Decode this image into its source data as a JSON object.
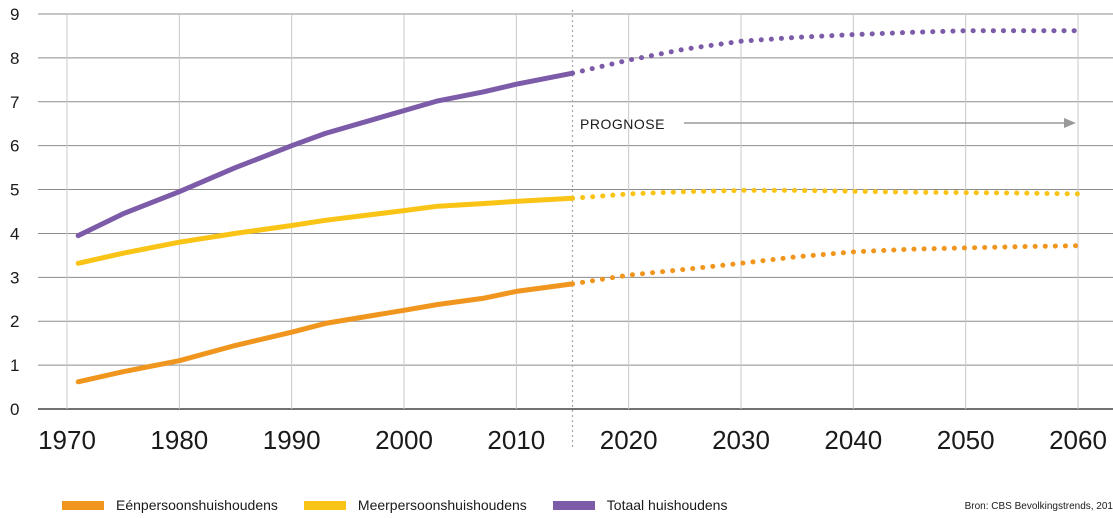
{
  "chart_data": {
    "type": "line",
    "ylim": [
      0,
      9
    ],
    "xlim": [
      1970,
      2060
    ],
    "yticks": [
      "0",
      "1",
      "2",
      "3",
      "4",
      "5",
      "6",
      "7",
      "8",
      "9"
    ],
    "xticks": [
      "1970",
      "1980",
      "1990",
      "2000",
      "2010",
      "2020",
      "2030",
      "2040",
      "2050",
      "2060"
    ],
    "divider_year": 2015,
    "annotation": "PROGNOSE",
    "grid": true,
    "legend_position": "bottom-left",
    "series": [
      {
        "name": "Eénpersoonshuishoudens",
        "color": "#f0961e",
        "x_hist": [
          1971,
          1975,
          1980,
          1985,
          1990,
          1993,
          2000,
          2003,
          2007,
          2010,
          2015
        ],
        "y_hist": [
          0.62,
          0.85,
          1.1,
          1.45,
          1.75,
          1.95,
          2.25,
          2.38,
          2.52,
          2.68,
          2.85
        ],
        "x_prog": [
          2015,
          2020,
          2025,
          2030,
          2035,
          2040,
          2045,
          2050,
          2055,
          2060
        ],
        "y_prog": [
          2.85,
          3.05,
          3.18,
          3.32,
          3.47,
          3.58,
          3.64,
          3.67,
          3.7,
          3.72
        ]
      },
      {
        "name": "Meerpersoonshuishoudens",
        "color": "#f9c415",
        "x_hist": [
          1971,
          1975,
          1980,
          1985,
          1990,
          1993,
          2000,
          2003,
          2007,
          2010,
          2015
        ],
        "y_hist": [
          3.32,
          3.55,
          3.8,
          4.0,
          4.18,
          4.3,
          4.52,
          4.62,
          4.68,
          4.73,
          4.8
        ],
        "x_prog": [
          2015,
          2020,
          2025,
          2030,
          2035,
          2040,
          2045,
          2050,
          2055,
          2060
        ],
        "y_prog": [
          4.8,
          4.9,
          4.95,
          4.98,
          4.98,
          4.96,
          4.94,
          4.93,
          4.92,
          4.9
        ]
      },
      {
        "name": "Totaal huishoudens",
        "color": "#7c5ba8",
        "x_hist": [
          1971,
          1975,
          1980,
          1985,
          1990,
          1993,
          2000,
          2003,
          2007,
          2010,
          2015
        ],
        "y_hist": [
          3.95,
          4.45,
          4.95,
          5.5,
          6.0,
          6.28,
          6.8,
          7.02,
          7.22,
          7.4,
          7.65
        ],
        "x_prog": [
          2015,
          2020,
          2025,
          2030,
          2035,
          2040,
          2045,
          2050,
          2055,
          2060
        ],
        "y_prog": [
          7.65,
          7.95,
          8.2,
          8.38,
          8.47,
          8.53,
          8.58,
          8.62,
          8.62,
          8.62
        ]
      }
    ],
    "source": "Bron: CBS Bevolkingstrends, 201"
  }
}
